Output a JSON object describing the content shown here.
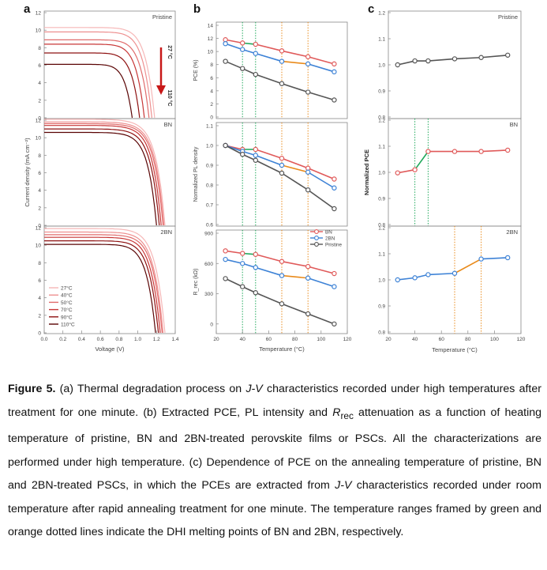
{
  "figure": {
    "panel_letters": [
      "a",
      "b",
      "c"
    ],
    "a": {
      "ylabel": "Current density (mA cm⁻²)",
      "xlabel": "Voltage (V)",
      "xticks": [
        "0.0",
        "0.2",
        "0.4",
        "0.6",
        "0.8",
        "1.0",
        "1.2",
        "1.4"
      ],
      "yticks": [
        "0",
        "2",
        "4",
        "6",
        "8",
        "10",
        "12"
      ],
      "subplot_labels": [
        "Pristine",
        "BN",
        "2BN"
      ],
      "arrow_top": "27 °C",
      "arrow_bottom": "110 °C",
      "legend": [
        "27°C",
        "40°C",
        "50°C",
        "70°C",
        "90°C",
        "110°C"
      ]
    },
    "b": {
      "ylabels": [
        "PCE (%)",
        "Normalized PL density",
        "R_rec (kΩ)"
      ],
      "xlabel": "Temperature (°C)",
      "xticks": [
        "20",
        "40",
        "60",
        "80",
        "100",
        "120"
      ],
      "yticks_top": [
        "0",
        "2",
        "4",
        "6",
        "8",
        "10",
        "12",
        "14"
      ],
      "yticks_mid": [
        "0.6",
        "0.7",
        "0.8",
        "0.9",
        "1.0",
        "1.1"
      ],
      "yticks_bot": [
        "0",
        "300",
        "600",
        "900"
      ],
      "legend": [
        "BN",
        "2BN",
        "Pristine"
      ]
    },
    "c": {
      "ylabel": "Normalized PCE",
      "xlabel": "Temperature (°C)",
      "xticks": [
        "20",
        "40",
        "60",
        "80",
        "100",
        "120"
      ],
      "yticks": [
        "0.8",
        "0.9",
        "1.0",
        "1.1",
        "1.2"
      ],
      "subplot_labels": [
        "Pristine",
        "BN",
        "2BN"
      ]
    }
  },
  "colors": {
    "bn": "#e05a5a",
    "bn2": "#3d82d6",
    "pristine": "#555555",
    "green_dot": "#1ea85a",
    "orange_dot": "#e98a1a",
    "jv": [
      "#f6b7b7",
      "#ee9090",
      "#e06c6c",
      "#c83636",
      "#8e1010",
      "#5a0404"
    ]
  },
  "chart_data": [
    {
      "type": "line",
      "panel": "a",
      "xlabel": "Voltage (V)",
      "ylabel": "Current density (mA cm⁻²)",
      "xlim": [
        0,
        1.4
      ],
      "ylim": [
        0,
        12
      ],
      "subplots": [
        {
          "label": "Pristine",
          "series": [
            {
              "name": "27°C",
              "jsc": 10.3,
              "voc": 1.18,
              "knee": 0.55
            },
            {
              "name": "40°C",
              "jsc": 9.8,
              "voc": 1.15,
              "knee": 0.55
            },
            {
              "name": "50°C",
              "jsc": 8.9,
              "voc": 1.12,
              "knee": 0.5
            },
            {
              "name": "70°C",
              "jsc": 8.4,
              "voc": 1.07,
              "knee": 0.5
            },
            {
              "name": "90°C",
              "jsc": 7.4,
              "voc": 1.02,
              "knee": 0.45
            },
            {
              "name": "110°C",
              "jsc": 6.1,
              "voc": 0.94,
              "knee": 0.45
            }
          ]
        },
        {
          "label": "BN",
          "series": [
            {
              "name": "27°C",
              "jsc": 12.1,
              "voc": 1.29,
              "knee": 0.75
            },
            {
              "name": "40°C",
              "jsc": 11.8,
              "voc": 1.28,
              "knee": 0.75
            },
            {
              "name": "50°C",
              "jsc": 11.6,
              "voc": 1.27,
              "knee": 0.75
            },
            {
              "name": "70°C",
              "jsc": 11.4,
              "voc": 1.25,
              "knee": 0.75
            },
            {
              "name": "90°C",
              "jsc": 11.0,
              "voc": 1.23,
              "knee": 0.72
            },
            {
              "name": "110°C",
              "jsc": 10.6,
              "voc": 1.2,
              "knee": 0.7
            }
          ]
        },
        {
          "label": "2BN",
          "series": [
            {
              "name": "27°C",
              "jsc": 11.9,
              "voc": 1.29,
              "knee": 0.65
            },
            {
              "name": "40°C",
              "jsc": 11.5,
              "voc": 1.27,
              "knee": 0.65
            },
            {
              "name": "50°C",
              "jsc": 11.2,
              "voc": 1.26,
              "knee": 0.65
            },
            {
              "name": "70°C",
              "jsc": 10.9,
              "voc": 1.24,
              "knee": 0.62
            },
            {
              "name": "90°C",
              "jsc": 10.5,
              "voc": 1.22,
              "knee": 0.6
            },
            {
              "name": "110°C",
              "jsc": 10.1,
              "voc": 1.19,
              "knee": 0.6
            }
          ]
        }
      ]
    },
    {
      "type": "line",
      "panel": "b",
      "xlabel": "Temperature (°C)",
      "xlim": [
        20,
        120
      ],
      "x": [
        27,
        40,
        50,
        70,
        90,
        110
      ],
      "subplots": [
        {
          "ylabel": "PCE (%)",
          "ylim": [
            0,
            14
          ],
          "series": [
            {
              "name": "BN",
              "values": [
                11.8,
                11.3,
                11.1,
                10.1,
                9.2,
                8.1
              ]
            },
            {
              "name": "2BN",
              "values": [
                11.2,
                10.3,
                9.7,
                8.5,
                8.1,
                6.9
              ]
            },
            {
              "name": "Pristine",
              "values": [
                8.5,
                7.4,
                6.5,
                5.1,
                3.8,
                2.6
              ]
            }
          ]
        },
        {
          "ylabel": "Normalized PL density",
          "ylim": [
            0.6,
            1.1
          ],
          "series": [
            {
              "name": "BN",
              "values": [
                1.0,
                0.98,
                0.98,
                0.935,
                0.885,
                0.83
              ]
            },
            {
              "name": "2BN",
              "values": [
                1.0,
                0.97,
                0.95,
                0.9,
                0.865,
                0.785
              ]
            },
            {
              "name": "Pristine",
              "values": [
                1.0,
                0.955,
                0.925,
                0.86,
                0.775,
                0.68
              ]
            }
          ]
        },
        {
          "ylabel": "R_rec (kΩ)",
          "ylim": [
            -80,
            900
          ],
          "series": [
            {
              "name": "BN",
              "values": [
                725,
                700,
                690,
                620,
                570,
                500
              ]
            },
            {
              "name": "2BN",
              "values": [
                640,
                600,
                560,
                480,
                455,
                370
              ]
            },
            {
              "name": "Pristine",
              "values": [
                450,
                370,
                310,
                200,
                100,
                0
              ]
            }
          ]
        }
      ],
      "vlines": [
        {
          "x": 40,
          "color": "green"
        },
        {
          "x": 50,
          "color": "green"
        },
        {
          "x": 70,
          "color": "orange"
        },
        {
          "x": 90,
          "color": "orange"
        }
      ]
    },
    {
      "type": "line",
      "panel": "c",
      "xlabel": "Temperature (°C)",
      "ylabel": "Normalized PCE",
      "xlim": [
        20,
        120
      ],
      "ylim": [
        0.8,
        1.2
      ],
      "x": [
        27,
        40,
        50,
        70,
        90,
        110
      ],
      "subplots": [
        {
          "label": "Pristine",
          "series": [
            {
              "values": [
                1.0,
                1.015,
                1.015,
                1.023,
                1.028,
                1.037
              ]
            }
          ]
        },
        {
          "label": "BN",
          "series": [
            {
              "values": [
                0.998,
                1.01,
                1.08,
                1.08,
                1.08,
                1.085
              ]
            }
          ],
          "vlines": [
            40,
            50
          ]
        },
        {
          "label": "2BN",
          "series": [
            {
              "values": [
                1.0,
                1.008,
                1.02,
                1.025,
                1.08,
                1.085
              ]
            }
          ],
          "vlines": [
            70,
            90
          ]
        }
      ]
    }
  ],
  "caption": {
    "label": "Figure 5.",
    "text_1": " (a) Thermal degradation process on ",
    "jv_1": "J-V",
    "text_2": " characteristics recorded under high temperatures after treatment for one minute. (b) Extracted PCE, PL intensity and ",
    "rrec_r": "R",
    "rrec_sub": "rec",
    "text_3": " attenuation as a function of heating temperature of pristine, BN and 2BN-treated perovskite films or PSCs. All the characterizations are performed under high temperature. (c) Dependence of PCE on the annealing temperature of pristine, BN and 2BN-treated PSCs, in which the PCEs are extracted from ",
    "jv_2": "J-V",
    "text_4": " characteristics recorded under room temperature after rapid annealing treatment for one minute. The temperature ranges framed by green and orange dotted lines indicate the DHI melting points of BN and 2BN, respectively."
  }
}
